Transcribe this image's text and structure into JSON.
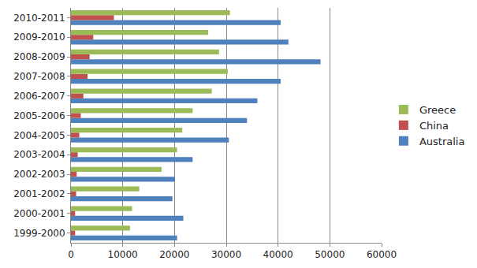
{
  "chart_data": {
    "type": "bar",
    "orientation": "horizontal",
    "categories": [
      "1999-2000",
      "2000-2001",
      "2001-2002",
      "2002-2003",
      "2003-2004",
      "2004-2005",
      "2005-2006",
      "2006-2007",
      "2007-2008",
      "2008-2009",
      "2009-2010",
      "2010-2011"
    ],
    "series": [
      {
        "name": "Greece",
        "color": "#9bbb59",
        "values": [
          11400,
          11800,
          13200,
          17500,
          20500,
          21500,
          23500,
          27200,
          30300,
          28600,
          26500,
          30700
        ]
      },
      {
        "name": "China",
        "color": "#c0504d",
        "values": [
          800,
          800,
          1000,
          1100,
          1300,
          1600,
          1900,
          2400,
          3200,
          3600,
          4300,
          8300
        ]
      },
      {
        "name": "Australia",
        "color": "#4f81bd",
        "values": [
          20500,
          21700,
          19600,
          20100,
          23500,
          30500,
          34000,
          36000,
          40500,
          48200,
          42000,
          40500
        ]
      }
    ],
    "xlim": [
      0,
      60000
    ],
    "xticks": [
      0,
      10000,
      20000,
      30000,
      40000,
      50000,
      60000
    ],
    "grid": true,
    "legend": "right"
  }
}
